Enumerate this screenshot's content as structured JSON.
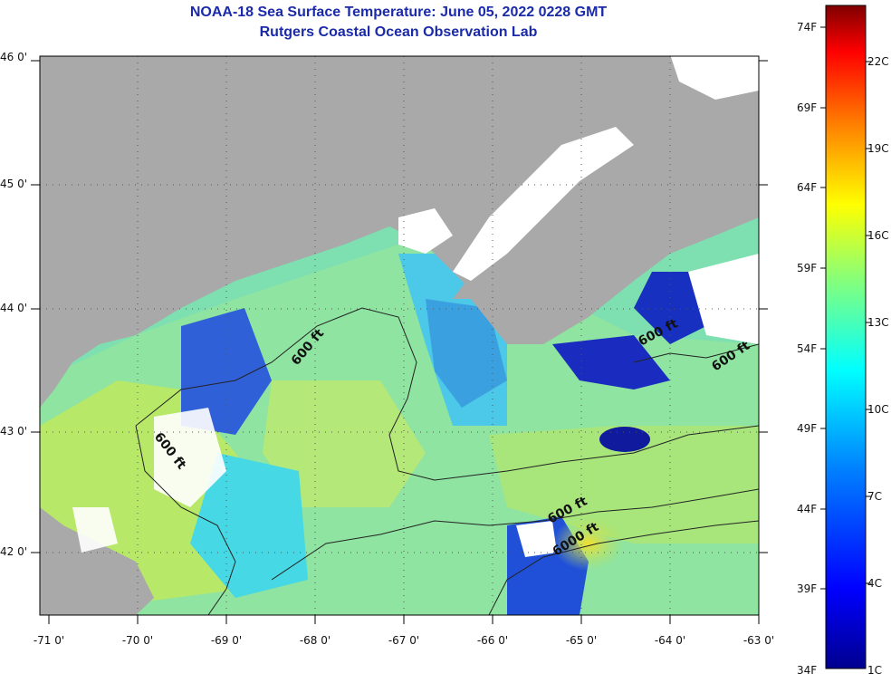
{
  "title": "NOAA-18 Sea Surface Temperature:  June 05, 2022 0228 GMT",
  "subtitle": "Rutgers Coastal Ocean Observation Lab",
  "lat_labels": [
    "46 0'",
    "45 0'",
    "44 0'",
    "43 0'",
    "42 0'"
  ],
  "lon_labels": [
    "-71 0'",
    "-70 0'",
    "-69 0'",
    "-68 0'",
    "-67 0'",
    "-66 0'",
    "-65 0'",
    "-64 0'",
    "-63 0'"
  ],
  "colorbar": {
    "fahrenheit": [
      "74F",
      "69F",
      "64F",
      "59F",
      "54F",
      "49F",
      "44F",
      "39F",
      "34F"
    ],
    "celsius": [
      "22C",
      "19C",
      "16C",
      "13C",
      "10C",
      "7C",
      "4C",
      "1C"
    ]
  },
  "contour_labels": [
    "600 ft",
    "600 ft",
    "600 ft",
    "600 ft",
    "600 ft",
    "6000 ft"
  ],
  "colors": {
    "land": "#a9a9a9",
    "cloud": "#ffffff",
    "title": "#1a2aa8",
    "sst_cool": "#1428c8",
    "sst_mid": "#3cd8e0",
    "sst_warm": "#b8e858"
  }
}
